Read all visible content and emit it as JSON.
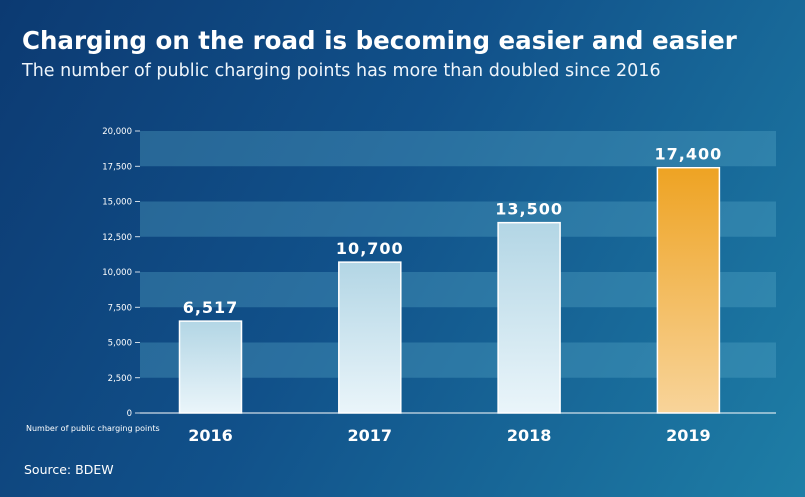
{
  "title": "Charging on the road is becoming easier and easier",
  "subtitle": "The number of public charging points has more than doubled since 2016",
  "source": "Source: BDEW",
  "chart_data": {
    "type": "bar",
    "categories": [
      "2016",
      "2017",
      "2018",
      "2019"
    ],
    "values": [
      6517,
      10700,
      13500,
      17400
    ],
    "value_labels": [
      "6,517",
      "10,700",
      "13,500",
      "17,400"
    ],
    "highlight_index": 3,
    "ylabel": "Number of public charging points",
    "ylim": [
      0,
      20000
    ],
    "yticks": [
      0,
      2500,
      5000,
      7500,
      10000,
      12500,
      15000,
      17500,
      20000
    ],
    "ytick_labels": [
      "0",
      "2,500",
      "5,000",
      "7,500",
      "10,000",
      "12,500",
      "15,000",
      "17,500",
      "20,000"
    ],
    "grid": "alternating horizontal bands",
    "colors": {
      "bar": "#c9e3ee",
      "highlight_bar": "#f0a42c",
      "band": "#5aa9c9"
    }
  }
}
